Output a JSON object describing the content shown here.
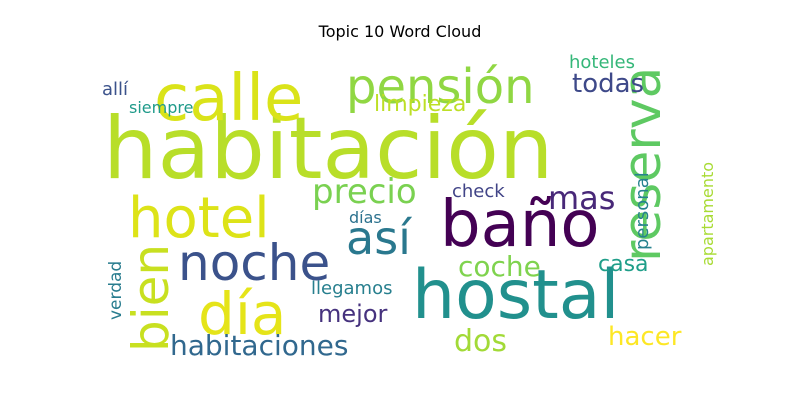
{
  "chart_data": {
    "type": "wordcloud",
    "title": "Topic 10 Word Cloud",
    "words": [
      {
        "text": "habitación",
        "color": "#b8de29"
      },
      {
        "text": "hostal",
        "color": "#21908d"
      },
      {
        "text": "calle",
        "color": "#dae319"
      },
      {
        "text": "baño",
        "color": "#440154"
      },
      {
        "text": "hotel",
        "color": "#dde318"
      },
      {
        "text": "reserva",
        "color": "#5ec962"
      },
      {
        "text": "noche",
        "color": "#3b528b"
      },
      {
        "text": "pensión",
        "color": "#90d743"
      },
      {
        "text": "día",
        "color": "#e5e419"
      },
      {
        "text": "así",
        "color": "#2a788e"
      },
      {
        "text": "bien",
        "color": "#c8e020"
      },
      {
        "text": "precio",
        "color": "#7ad151"
      },
      {
        "text": "mas",
        "color": "#482878"
      },
      {
        "text": "coche",
        "color": "#7fd34e"
      },
      {
        "text": "habitaciones",
        "color": "#31688e"
      },
      {
        "text": "dos",
        "color": "#a2da37"
      },
      {
        "text": "todas",
        "color": "#3e4989"
      },
      {
        "text": "limpieza",
        "color": "#bddf26"
      },
      {
        "text": "hacer",
        "color": "#fde725"
      },
      {
        "text": "mejor",
        "color": "#46327e"
      },
      {
        "text": "casa",
        "color": "#1f9e89"
      },
      {
        "text": "hoteles",
        "color": "#35b779"
      },
      {
        "text": "check",
        "color": "#414487"
      },
      {
        "text": "llegamos",
        "color": "#277f8e"
      },
      {
        "text": "personal",
        "color": "#26828e"
      },
      {
        "text": "apartamento",
        "color": "#a8db34"
      },
      {
        "text": "verdad",
        "color": "#287c8e"
      },
      {
        "text": "allí",
        "color": "#3b528b"
      },
      {
        "text": "siempre",
        "color": "#1f9a8a"
      },
      {
        "text": "días",
        "color": "#2c728e"
      }
    ]
  }
}
